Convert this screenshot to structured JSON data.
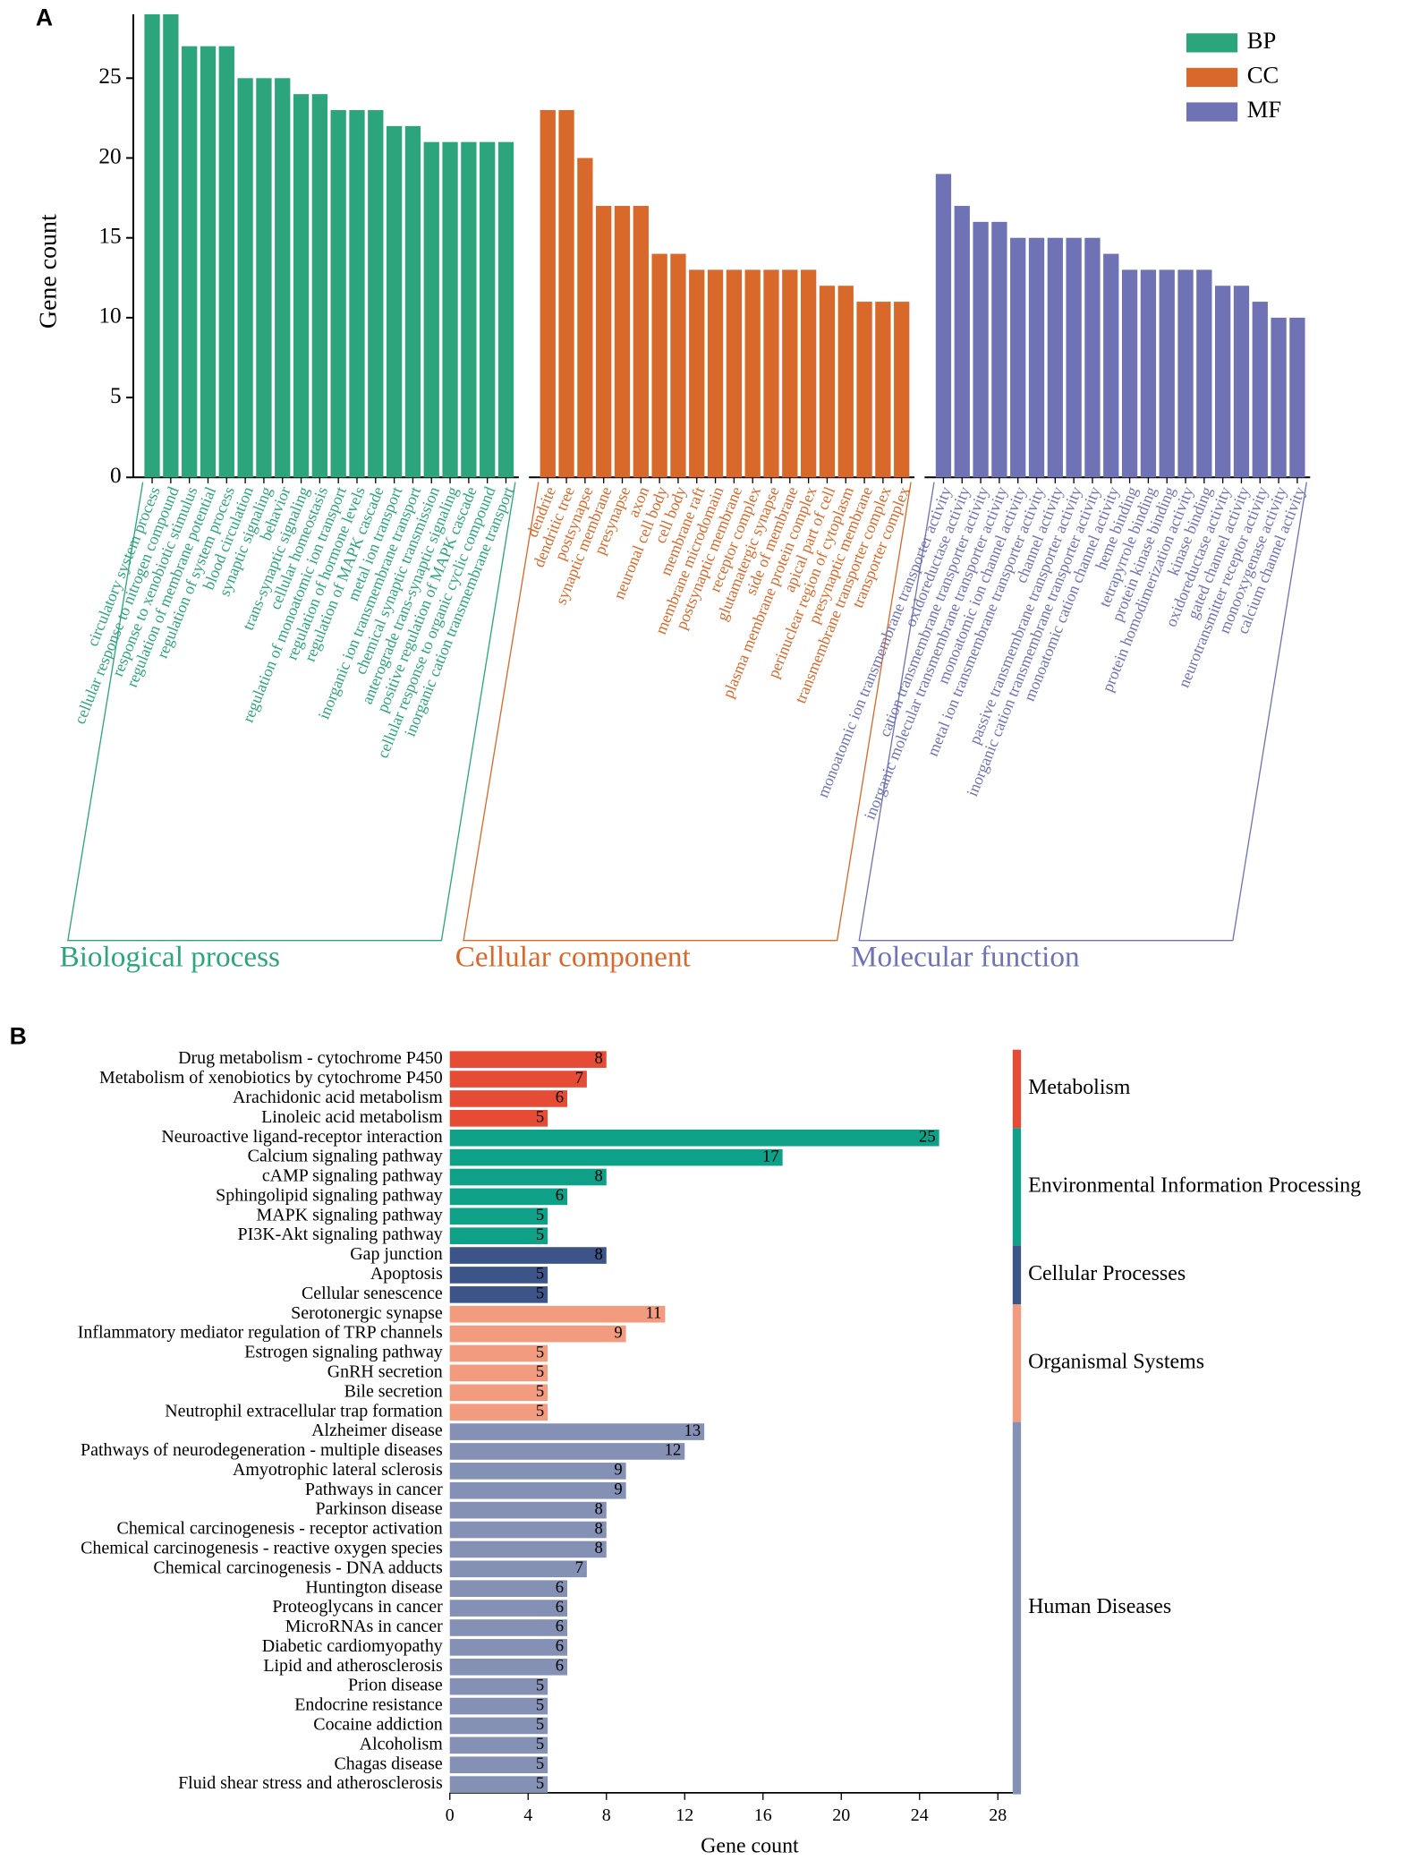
{
  "chart_data": [
    {
      "type": "bar",
      "panel_label": "A",
      "ylabel": "Gene count",
      "ylim": [
        0,
        29
      ],
      "yticks": [
        0,
        5,
        10,
        15,
        20,
        25
      ],
      "legend": "upper right",
      "series": [
        {
          "name": "BP",
          "group_label": "Biological process",
          "color": "#2ca57d",
          "categories": [
            "circulatory system process",
            "cellular response to nitrogen compound",
            "response to xenobiotic stimulus",
            "regulation of membrane potential",
            "regulation of system process",
            "blood circulation",
            "synaptic signaling",
            "behavior",
            "trans-synaptic signaling",
            "cellular homeostasis",
            "regulation of monoatomic ion transport",
            "regulation of hormone levels",
            "regulation of MAPK cascade",
            "metal ion transport",
            "inorganic ion transmembrane transport",
            "chemical synaptic transmission",
            "anterograde trans-synaptic signaling",
            "positive regulation of MAPK cascade",
            "cellular response to organic cyclic compound",
            "inorganic cation transmembrane transport"
          ],
          "values": [
            29,
            29,
            27,
            27,
            27,
            25,
            25,
            25,
            24,
            24,
            23,
            23,
            23,
            22,
            22,
            21,
            21,
            21,
            21,
            21
          ]
        },
        {
          "name": "CC",
          "group_label": "Cellular component",
          "color": "#d9692a",
          "categories": [
            "dendrite",
            "dendritic tree",
            "postsynapse",
            "synaptic membrane",
            "presynapse",
            "axon",
            "neuronal cell body",
            "cell body",
            "membrane raft",
            "membrane microdomain",
            "postsynaptic membrane",
            "receptor complex",
            "glutamatergic synapse",
            "side of membrane",
            "plasma membrane protein complex",
            "apical part of cell",
            "perinuclear region of cytoplasm",
            "presynaptic membrane",
            "transmembrane transporter complex",
            "transporter complex"
          ],
          "values": [
            23,
            23,
            20,
            17,
            17,
            17,
            14,
            14,
            13,
            13,
            13,
            13,
            13,
            13,
            13,
            12,
            12,
            11,
            11,
            11
          ]
        },
        {
          "name": "MF",
          "group_label": "Molecular function",
          "color": "#6f73b5",
          "categories": [
            "monoatomic ion transmembrane transporter activity",
            "oxidoreductase activity",
            "cation transmembrane transporter activity",
            "inorganic molecular transmembrane transporter activity",
            "monoatomic ion channel activity",
            "metal ion transmembrane transporter activity",
            "channel activity",
            "passive transmembrane transporter activity",
            "inorganic cation transmembrane transporter activity",
            "monoatomic cation channel activity",
            "heme binding",
            "tetrapyrrole binding",
            "protein kinase binding",
            "protein homodimerization activity",
            "kinase binding",
            "oxidoreductase activity",
            "gated channel activity",
            "neurotransmitter receptor activity",
            "monooxygenase activity",
            "calcium channel activity"
          ],
          "values": [
            19,
            17,
            16,
            16,
            15,
            15,
            15,
            15,
            15,
            14,
            13,
            13,
            13,
            13,
            13,
            12,
            12,
            11,
            10,
            10
          ]
        }
      ]
    },
    {
      "type": "barh",
      "panel_label": "B",
      "xlabel": "Gene count",
      "xlim": [
        0,
        29
      ],
      "xticks": [
        0,
        4,
        8,
        12,
        16,
        20,
        24,
        28
      ],
      "series": [
        {
          "name": "Metabolism",
          "color": "#e64b35",
          "categories": [
            "Drug metabolism - cytochrome P450",
            "Metabolism of xenobiotics by cytochrome P450",
            "Arachidonic acid metabolism",
            "Linoleic acid metabolism"
          ],
          "values": [
            8,
            7,
            6,
            5
          ]
        },
        {
          "name": "Environmental Information Processing",
          "color": "#0fa088",
          "categories": [
            "Neuroactive ligand-receptor interaction",
            "Calcium signaling pathway",
            "cAMP signaling pathway",
            "Sphingolipid signaling pathway",
            "MAPK signaling pathway",
            "PI3K-Akt signaling pathway"
          ],
          "values": [
            25,
            17,
            8,
            6,
            5,
            5
          ]
        },
        {
          "name": "Cellular Processes",
          "color": "#3c5488",
          "categories": [
            "Gap junction",
            "Apoptosis",
            "Cellular senescence"
          ],
          "values": [
            8,
            5,
            5
          ]
        },
        {
          "name": "Organismal Systems",
          "color": "#f39b7f",
          "categories": [
            "Serotonergic synapse",
            "Inflammatory mediator regulation of TRP channels",
            "Estrogen signaling pathway",
            "GnRH secretion",
            "Bile secretion",
            "Neutrophil extracellular trap formation"
          ],
          "values": [
            11,
            9,
            5,
            5,
            5,
            5
          ]
        },
        {
          "name": "Human Diseases",
          "color": "#8491b4",
          "categories": [
            "Alzheimer disease",
            "Pathways of neurodegeneration - multiple diseases",
            "Amyotrophic lateral sclerosis",
            "Pathways in cancer",
            "Parkinson disease",
            "Chemical carcinogenesis - receptor activation",
            "Chemical carcinogenesis - reactive oxygen species",
            "Chemical carcinogenesis - DNA adducts",
            "Huntington disease",
            "Proteoglycans in cancer",
            "MicroRNAs in cancer",
            "Diabetic cardiomyopathy",
            "Lipid and atherosclerosis",
            "Prion disease",
            "Endocrine resistance",
            "Cocaine addiction",
            "Alcoholism",
            "Chagas disease",
            "Fluid shear stress and atherosclerosis"
          ],
          "values": [
            13,
            12,
            9,
            9,
            8,
            8,
            8,
            7,
            6,
            6,
            6,
            6,
            6,
            5,
            5,
            5,
            5,
            5,
            5
          ]
        }
      ]
    }
  ]
}
